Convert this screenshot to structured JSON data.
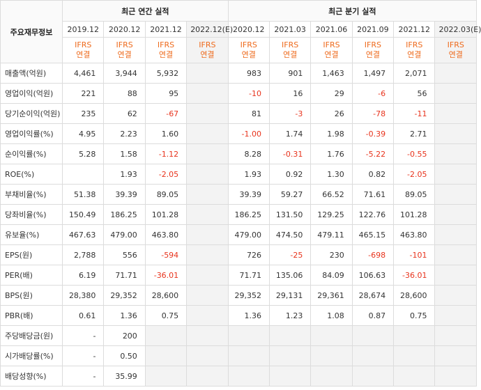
{
  "header": {
    "row_label": "주요재무정보",
    "annual_title": "최근 연간 실적",
    "quarterly_title": "최근 분기 실적",
    "periods": [
      "2019.12",
      "2020.12",
      "2021.12",
      "2022.12(E)",
      "2020.12",
      "2021.03",
      "2021.06",
      "2021.09",
      "2021.12",
      "2022.03(E)"
    ],
    "standard_line1": "IFRS",
    "standard_line2": "연결"
  },
  "rows": [
    {
      "label": "매출액(억원)",
      "values": [
        "4,461",
        "3,944",
        "5,932",
        "",
        "983",
        "901",
        "1,463",
        "1,497",
        "2,071",
        ""
      ]
    },
    {
      "label": "영업이익(억원)",
      "values": [
        "221",
        "88",
        "95",
        "",
        "-10",
        "16",
        "29",
        "-6",
        "56",
        ""
      ]
    },
    {
      "label": "당기순이익(억원)",
      "values": [
        "235",
        "62",
        "-67",
        "",
        "81",
        "-3",
        "26",
        "-78",
        "-11",
        ""
      ]
    },
    {
      "label": "영업이익률(%)",
      "values": [
        "4.95",
        "2.23",
        "1.60",
        "",
        "-1.00",
        "1.74",
        "1.98",
        "-0.39",
        "2.71",
        ""
      ]
    },
    {
      "label": "순이익률(%)",
      "values": [
        "5.28",
        "1.58",
        "-1.12",
        "",
        "8.28",
        "-0.31",
        "1.76",
        "-5.22",
        "-0.55",
        ""
      ]
    },
    {
      "label": "ROE(%)",
      "values": [
        "",
        "1.93",
        "-2.05",
        "",
        "1.93",
        "0.92",
        "1.30",
        "0.82",
        "-2.05",
        ""
      ]
    },
    {
      "label": "부채비율(%)",
      "values": [
        "51.38",
        "39.39",
        "89.05",
        "",
        "39.39",
        "59.27",
        "66.52",
        "71.61",
        "89.05",
        ""
      ]
    },
    {
      "label": "당좌비율(%)",
      "values": [
        "150.49",
        "186.25",
        "101.28",
        "",
        "186.25",
        "131.50",
        "129.25",
        "122.76",
        "101.28",
        ""
      ]
    },
    {
      "label": "유보율(%)",
      "values": [
        "467.63",
        "479.00",
        "463.80",
        "",
        "479.00",
        "474.50",
        "479.11",
        "465.15",
        "463.80",
        ""
      ]
    },
    {
      "label": "EPS(원)",
      "values": [
        "2,788",
        "556",
        "-594",
        "",
        "726",
        "-25",
        "230",
        "-698",
        "-101",
        ""
      ]
    },
    {
      "label": "PER(배)",
      "values": [
        "6.19",
        "71.71",
        "-36.01",
        "",
        "71.71",
        "135.06",
        "84.09",
        "106.63",
        "-36.01",
        ""
      ]
    },
    {
      "label": "BPS(원)",
      "values": [
        "28,380",
        "29,352",
        "28,600",
        "",
        "29,352",
        "29,131",
        "29,361",
        "28,674",
        "28,600",
        ""
      ]
    },
    {
      "label": "PBR(배)",
      "values": [
        "0.61",
        "1.36",
        "0.75",
        "",
        "1.36",
        "1.23",
        "1.08",
        "0.87",
        "0.75",
        ""
      ]
    },
    {
      "label": "주당배당금(원)",
      "values": [
        "-",
        "200",
        "",
        "",
        "",
        "",
        "",
        "",
        "",
        ""
      ]
    },
    {
      "label": "시가배당률(%)",
      "values": [
        "-",
        "0.50",
        "",
        "",
        "",
        "",
        "",
        "",
        "",
        ""
      ]
    },
    {
      "label": "배당성향(%)",
      "values": [
        "-",
        "35.99",
        "",
        "",
        "",
        "",
        "",
        "",
        "",
        ""
      ]
    }
  ],
  "colors": {
    "negative": "#e8331c",
    "ifrs": "#ee6a1c",
    "estimate_bg": "#f3f3f3"
  }
}
